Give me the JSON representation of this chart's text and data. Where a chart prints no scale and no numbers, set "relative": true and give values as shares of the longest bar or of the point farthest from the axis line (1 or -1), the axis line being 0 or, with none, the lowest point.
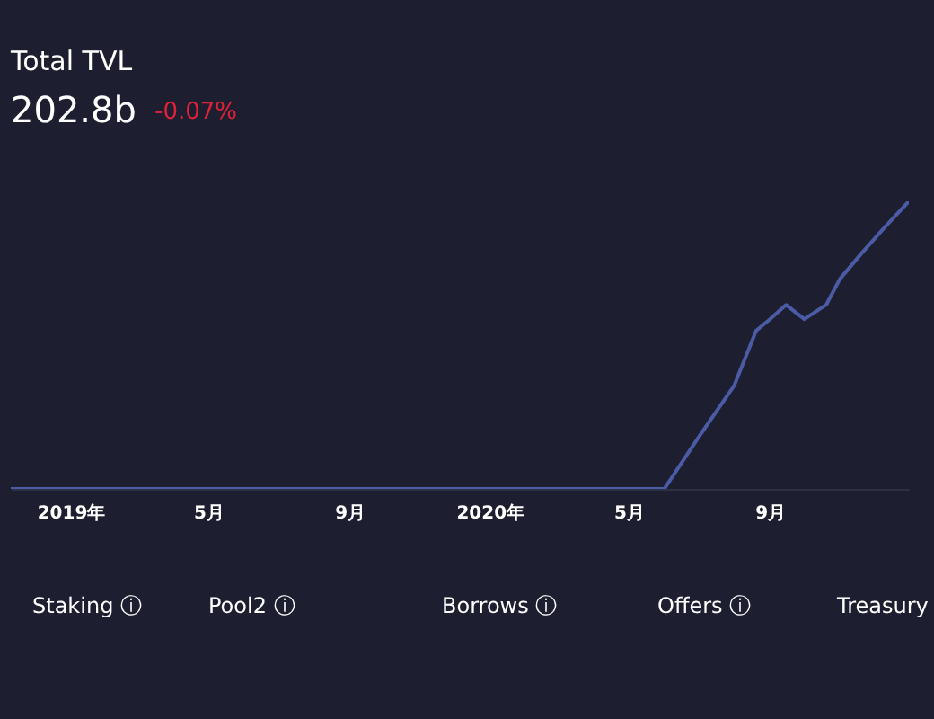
{
  "chart_data": {
    "type": "line",
    "title": "Total TVL",
    "subtitle": "202.8b",
    "annotations": [
      "-0.07%",
      "Staking ⓘ",
      "Pool2 ⓘ",
      "Borrows ⓘ",
      "Offers ⓘ",
      "Treasury"
    ],
    "relative": true,
    "x": [
      "2018-11-10",
      "2019-03-01",
      "2019-07-01",
      "2019-11-01",
      "2020-03-01",
      "2020-06-01",
      "2020-07-01",
      "2020-08-01",
      "2020-08-20",
      "2020-09-01",
      "2020-09-15",
      "2020-10-01",
      "2020-10-20",
      "2020-11-01",
      "2020-11-20",
      "2020-12-10",
      "2020-12-31"
    ],
    "series": [
      {
        "color": "#4c5ba6",
        "values": [
          0,
          0,
          0,
          0,
          0,
          0,
          0.18,
          0.36,
          0.55,
          0.59,
          0.64,
          0.59,
          0.64,
          0.73,
          0.82,
          0.91,
          1
        ]
      }
    ],
    "xticks": [
      {
        "value": "2019-01",
        "label": "2019年"
      },
      {
        "value": "2019-05",
        "label": "5月"
      },
      {
        "value": "2019-09",
        "label": "9月"
      },
      {
        "value": "2020-01",
        "label": "2020年"
      },
      {
        "value": "2020-05",
        "label": "5月"
      },
      {
        "value": "2020-09",
        "label": "9月"
      }
    ],
    "xlim": [
      "2018-11-10",
      "2020-12-31"
    ],
    "grid": false
  }
}
